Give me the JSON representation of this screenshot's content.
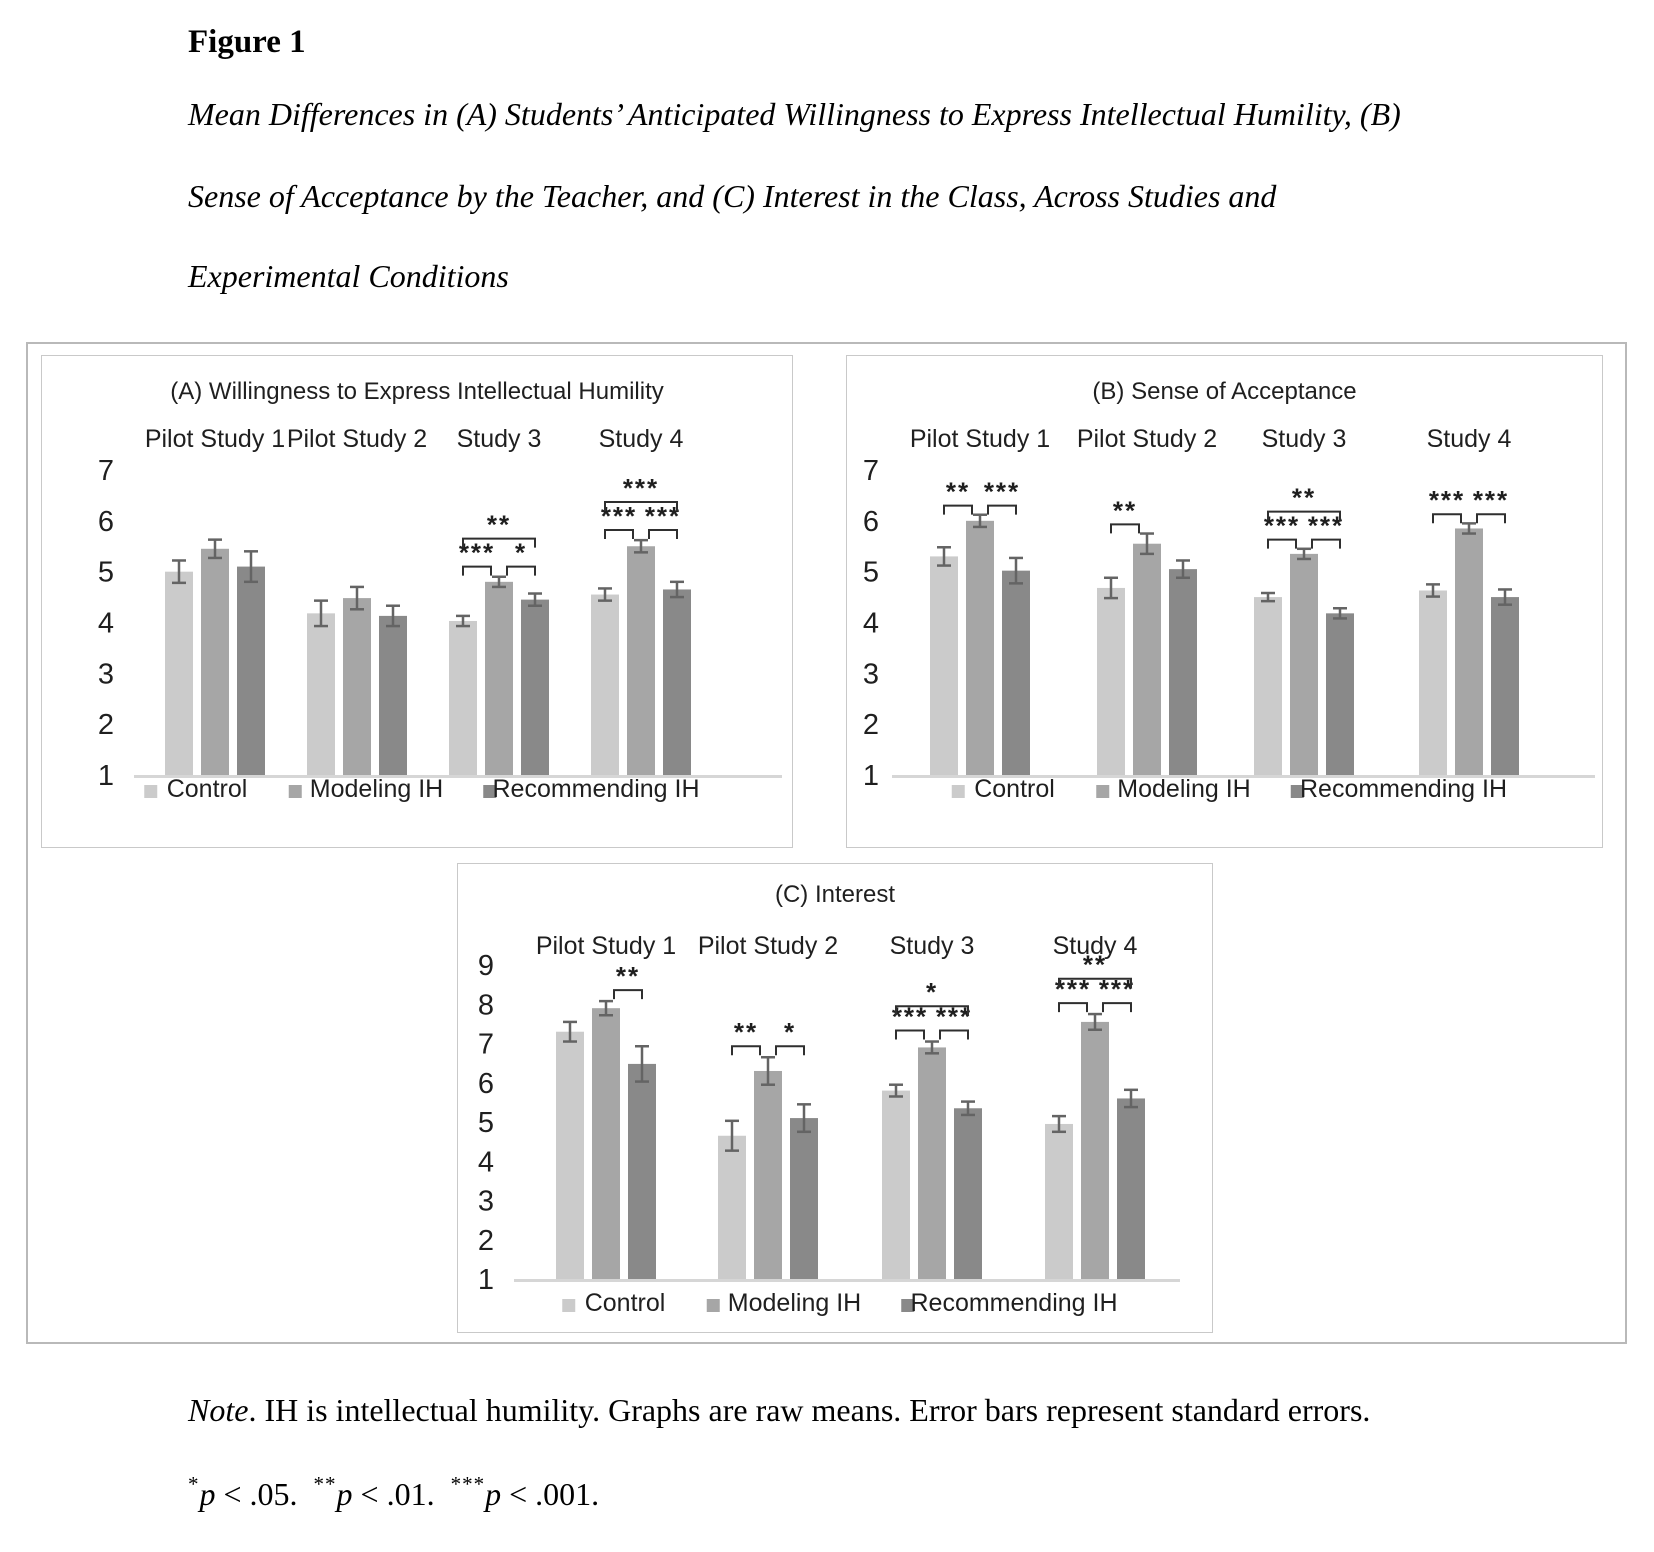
{
  "document": {
    "figure_label": "Figure 1",
    "caption_line1": "Mean Differences in (A) Students’ Anticipated Willingness to Express Intellectual Humility, (B)",
    "caption_line2": "Sense of Acceptance by the Teacher, and (C) Interest in the Class, Across Studies and",
    "caption_line3": "Experimental Conditions",
    "note_word": "Note",
    "note_text": ". IH is intellectual humility. Graphs are raw means. Error bars represent standard errors.",
    "sig_note": [
      {
        "stars": "*",
        "p": "p",
        "rest": " < .05."
      },
      {
        "stars": "**",
        "p": "p",
        "rest": " < .01."
      },
      {
        "stars": "***",
        "p": "p",
        "rest": " < .001."
      }
    ]
  },
  "colors": {
    "control": "#cbcbcb",
    "modeling": "#a6a6a6",
    "recommending": "#898989",
    "error_bar": "#646464",
    "bracket": "#2f2f2f",
    "baseline": "#d6d6d6",
    "text": "#1f1f1f"
  },
  "chart_data": [
    {
      "id": "A",
      "type": "bar",
      "title": "(A) Willingness to Express Intellectual Humility",
      "categories": [
        "Pilot Study 1",
        "Pilot Study 2",
        "Study 3",
        "Study 4"
      ],
      "ylim": [
        1,
        7
      ],
      "yticks": [
        1,
        2,
        3,
        4,
        5,
        6,
        7
      ],
      "grid": false,
      "legend_position": "bottom",
      "error_bars": "standard errors",
      "series": [
        {
          "name": "Control",
          "color": "#cbcbcb",
          "values": [
            5.0,
            4.18,
            4.03,
            4.55
          ],
          "errors": [
            0.22,
            0.25,
            0.1,
            0.12
          ]
        },
        {
          "name": "Modeling IH",
          "color": "#a6a6a6",
          "values": [
            5.45,
            4.48,
            4.8,
            5.5
          ],
          "errors": [
            0.18,
            0.22,
            0.1,
            0.12
          ]
        },
        {
          "name": "Recommending IH",
          "color": "#898989",
          "values": [
            5.1,
            4.13,
            4.45,
            4.65
          ],
          "errors": [
            0.3,
            0.2,
            0.12,
            0.15
          ]
        }
      ],
      "significance": [
        {
          "group": 2,
          "pairs": [
            [
              0,
              1,
              "***"
            ],
            [
              1,
              2,
              "*"
            ],
            [
              0,
              2,
              "**"
            ]
          ]
        },
        {
          "group": 3,
          "pairs": [
            [
              0,
              1,
              "***"
            ],
            [
              1,
              2,
              "***"
            ],
            [
              0,
              2,
              "***"
            ]
          ]
        }
      ]
    },
    {
      "id": "B",
      "type": "bar",
      "title": "(B) Sense of Acceptance",
      "categories": [
        "Pilot Study 1",
        "Pilot Study 2",
        "Study 3",
        "Study 4"
      ],
      "ylim": [
        1,
        7
      ],
      "yticks": [
        1,
        2,
        3,
        4,
        5,
        6,
        7
      ],
      "grid": false,
      "legend_position": "bottom",
      "error_bars": "standard errors",
      "series": [
        {
          "name": "Control",
          "color": "#cbcbcb",
          "values": [
            5.3,
            4.68,
            4.5,
            4.63
          ],
          "errors": [
            0.18,
            0.2,
            0.08,
            0.12
          ]
        },
        {
          "name": "Modeling IH",
          "color": "#a6a6a6",
          "values": [
            6.0,
            5.55,
            5.35,
            5.85
          ],
          "errors": [
            0.12,
            0.2,
            0.1,
            0.1
          ]
        },
        {
          "name": "Recommending IH",
          "color": "#898989",
          "values": [
            5.02,
            5.05,
            4.18,
            4.5
          ],
          "errors": [
            0.25,
            0.17,
            0.1,
            0.15
          ]
        }
      ],
      "significance": [
        {
          "group": 0,
          "pairs": [
            [
              0,
              1,
              "**"
            ],
            [
              1,
              2,
              "***"
            ]
          ]
        },
        {
          "group": 1,
          "pairs": [
            [
              0,
              1,
              "**"
            ]
          ]
        },
        {
          "group": 2,
          "pairs": [
            [
              0,
              1,
              "***"
            ],
            [
              1,
              2,
              "***"
            ],
            [
              0,
              2,
              "**"
            ]
          ]
        },
        {
          "group": 3,
          "pairs": [
            [
              0,
              1,
              "***"
            ],
            [
              1,
              2,
              "***"
            ]
          ]
        }
      ]
    },
    {
      "id": "C",
      "type": "bar",
      "title": "(C) Interest",
      "categories": [
        "Pilot Study 1",
        "Pilot Study 2",
        "Study 3",
        "Study 4"
      ],
      "ylim": [
        1,
        9
      ],
      "yticks": [
        1,
        2,
        3,
        4,
        5,
        6,
        7,
        8,
        9
      ],
      "grid": false,
      "legend_position": "bottom",
      "error_bars": "standard errors",
      "series": [
        {
          "name": "Control",
          "color": "#cbcbcb",
          "values": [
            7.3,
            4.65,
            5.8,
            4.95
          ],
          "errors": [
            0.25,
            0.38,
            0.15,
            0.2
          ]
        },
        {
          "name": "Modeling IH",
          "color": "#a6a6a6",
          "values": [
            7.9,
            6.3,
            6.9,
            7.55
          ],
          "errors": [
            0.18,
            0.35,
            0.15,
            0.2
          ]
        },
        {
          "name": "Recommending IH",
          "color": "#898989",
          "values": [
            6.48,
            5.1,
            5.35,
            5.6
          ],
          "errors": [
            0.45,
            0.35,
            0.17,
            0.22
          ]
        }
      ],
      "significance": [
        {
          "group": 0,
          "pairs": [
            [
              1,
              2,
              "**"
            ]
          ]
        },
        {
          "group": 1,
          "pairs": [
            [
              0,
              1,
              "**"
            ],
            [
              1,
              2,
              "*"
            ]
          ]
        },
        {
          "group": 2,
          "pairs": [
            [
              0,
              1,
              "***"
            ],
            [
              1,
              2,
              "***"
            ],
            [
              0,
              2,
              "*"
            ]
          ]
        },
        {
          "group": 3,
          "pairs": [
            [
              0,
              1,
              "***"
            ],
            [
              1,
              2,
              "***"
            ],
            [
              0,
              2,
              "**"
            ]
          ]
        }
      ]
    }
  ]
}
